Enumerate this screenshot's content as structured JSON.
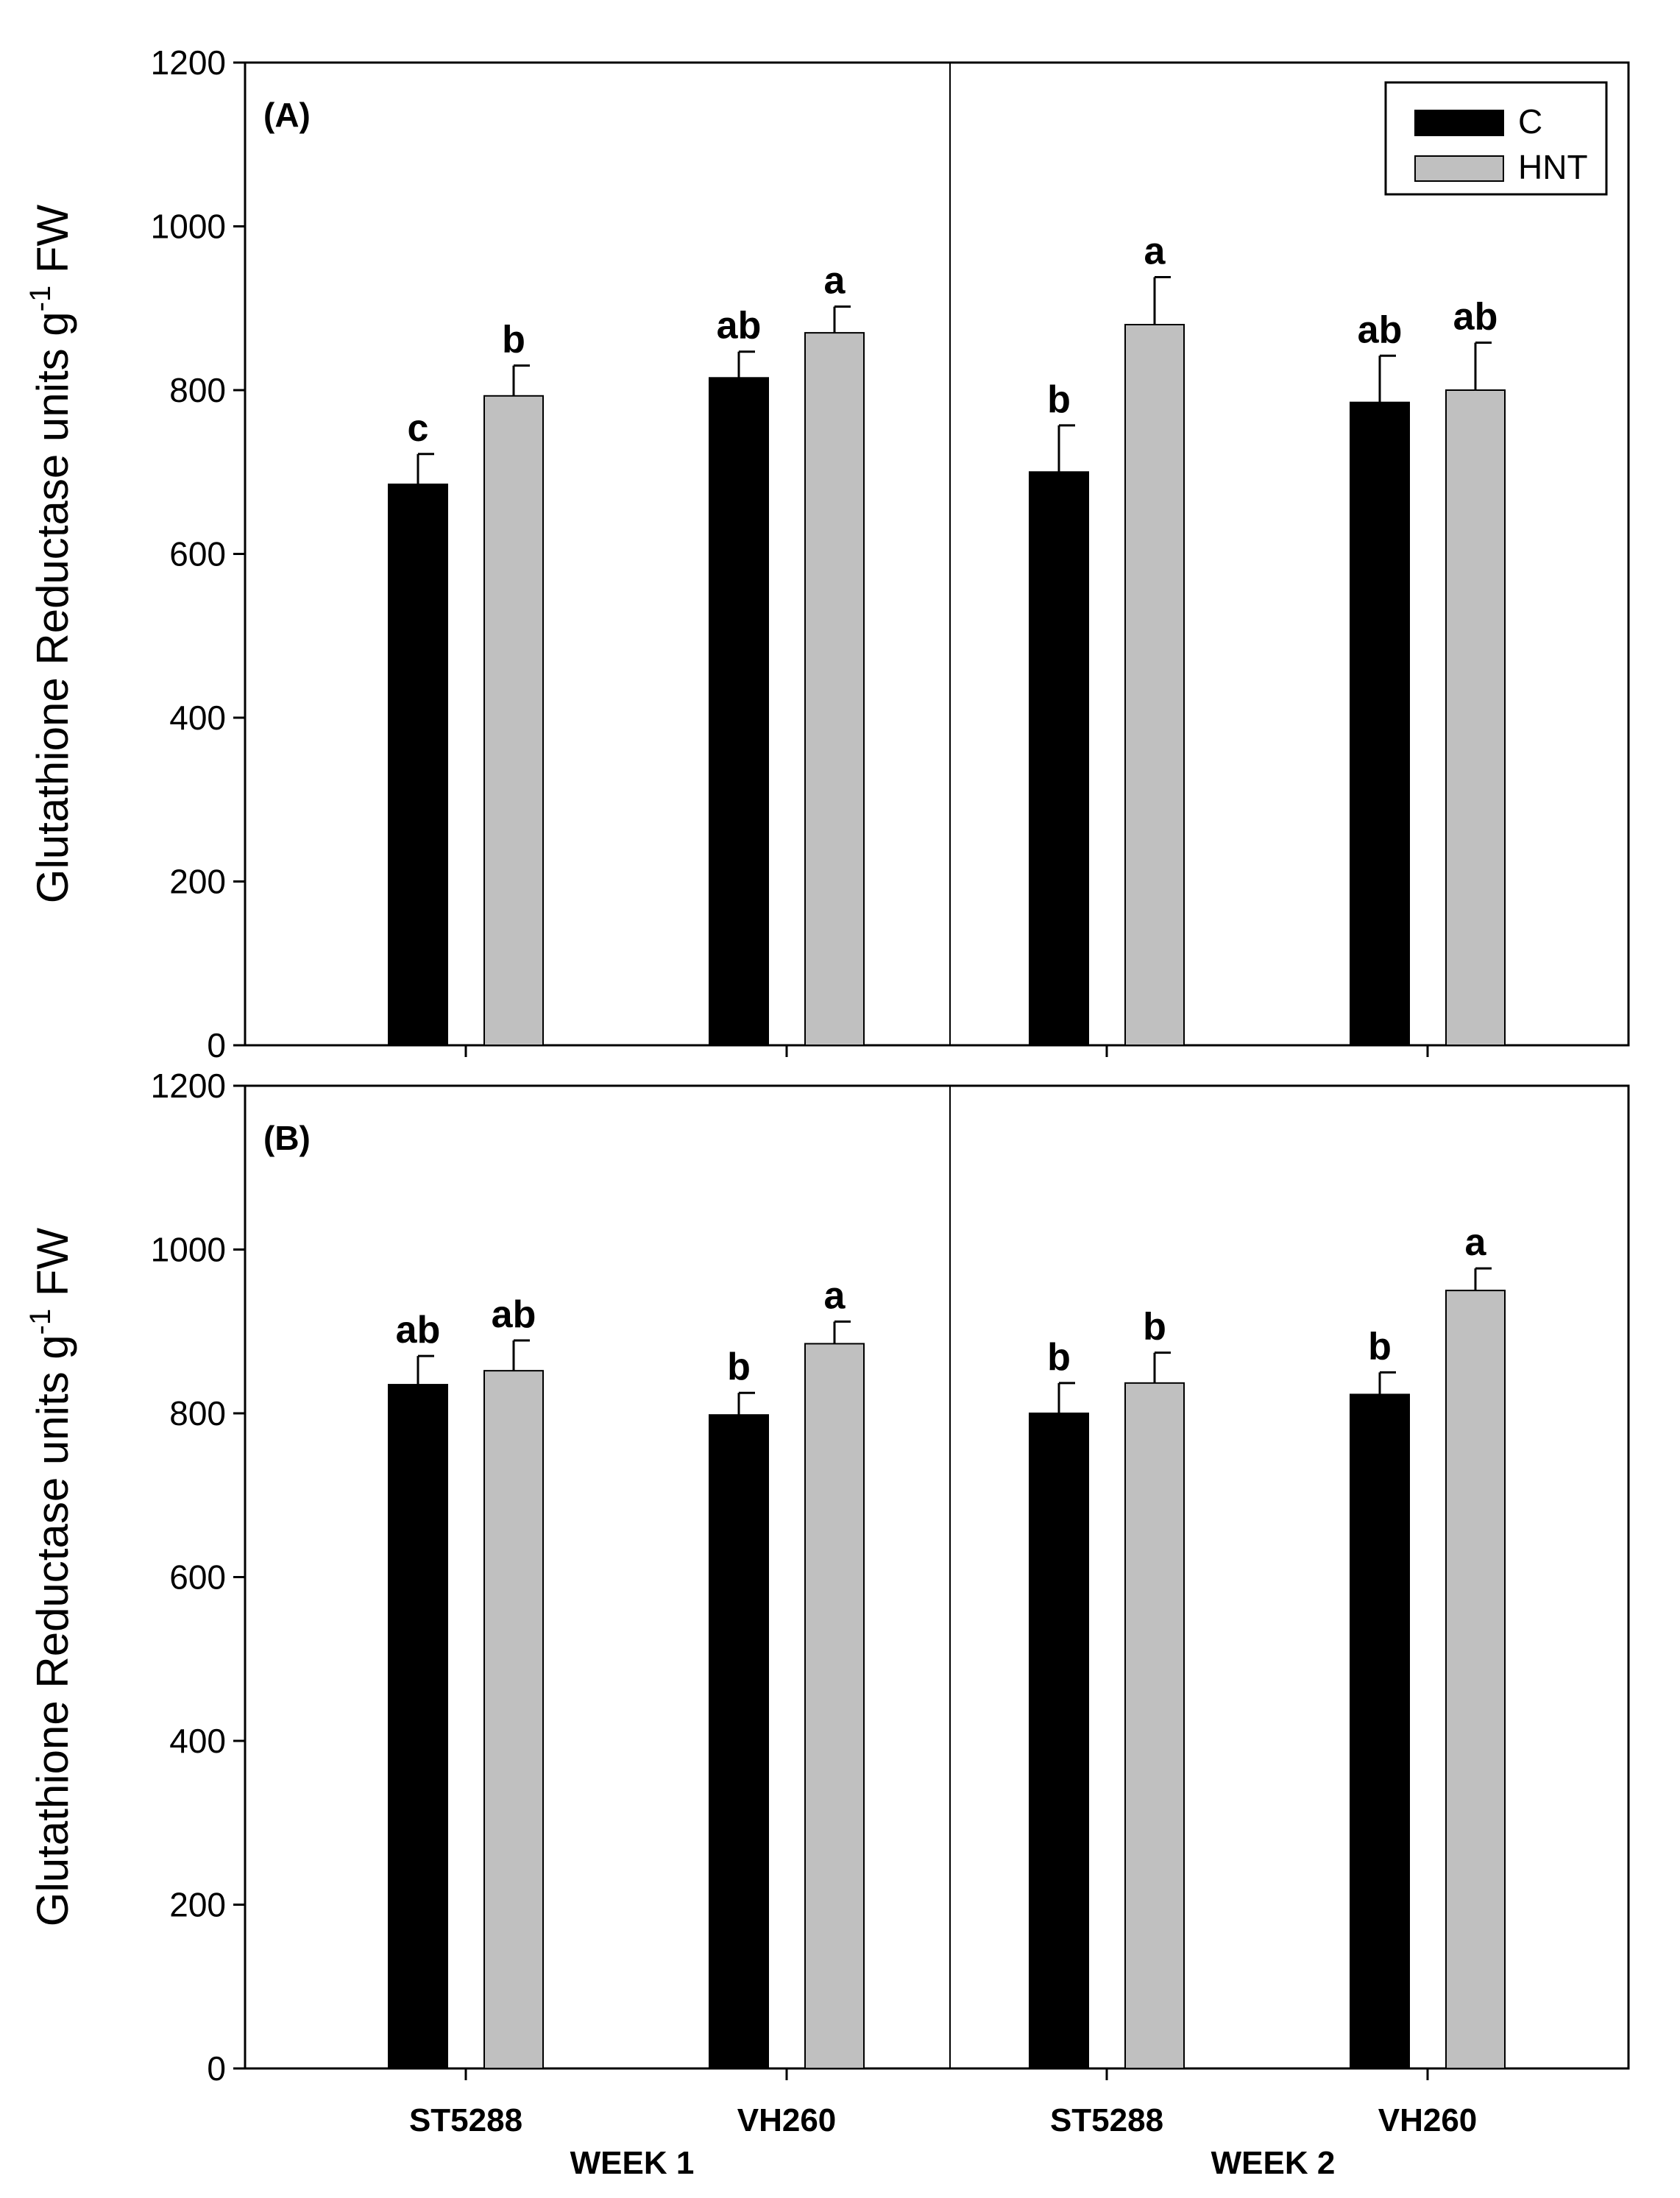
{
  "colors": {
    "C": "#000000",
    "HNT": "#c0c0c0"
  },
  "chart_data": [
    {
      "type": "bar",
      "panel_label": "(A)",
      "ylabel": "Glutathione Reductase units g⁻¹ FW",
      "ylabel_parts": {
        "main": "Glutathione Reductase units g",
        "sup": "-1",
        "tail": " FW"
      },
      "ylim": [
        0,
        1200
      ],
      "yticks": [
        0,
        200,
        400,
        600,
        800,
        1000,
        1200
      ],
      "groups": [
        "WEEK 1",
        "WEEK 2"
      ],
      "categories": [
        "ST5288",
        "VH260",
        "ST5288",
        "VH260"
      ],
      "category_group": [
        0,
        0,
        1,
        1
      ],
      "legend": {
        "position": "top-right",
        "entries": [
          "C",
          "HNT"
        ]
      },
      "series": [
        {
          "name": "C",
          "values": [
            685,
            815,
            700,
            785
          ],
          "errors": [
            37,
            32,
            57,
            57
          ],
          "significance": [
            "c",
            "ab",
            "b",
            "ab"
          ]
        },
        {
          "name": "HNT",
          "values": [
            793,
            870,
            880,
            800
          ],
          "errors": [
            37,
            32,
            58,
            58
          ],
          "significance": [
            "b",
            "a",
            "a",
            "ab"
          ]
        }
      ]
    },
    {
      "type": "bar",
      "panel_label": "(B)",
      "ylabel": "Glutathione Reductase units g⁻¹ FW",
      "ylabel_parts": {
        "main": "Glutathione Reductase units g",
        "sup": "-1",
        "tail": " FW"
      },
      "ylim": [
        0,
        1200
      ],
      "yticks": [
        0,
        200,
        400,
        600,
        800,
        1000,
        1200
      ],
      "groups": [
        "WEEK 1",
        "WEEK 2"
      ],
      "categories": [
        "ST5288",
        "VH260",
        "ST5288",
        "VH260"
      ],
      "category_group": [
        0,
        0,
        1,
        1
      ],
      "series": [
        {
          "name": "C",
          "values": [
            835,
            798,
            800,
            823
          ],
          "errors": [
            35,
            27,
            37,
            27
          ],
          "significance": [
            "ab",
            "b",
            "b",
            "b"
          ]
        },
        {
          "name": "HNT",
          "values": [
            852,
            885,
            837,
            950
          ],
          "errors": [
            37,
            27,
            37,
            27
          ],
          "significance": [
            "ab",
            "a",
            "b",
            "a"
          ]
        }
      ]
    }
  ]
}
